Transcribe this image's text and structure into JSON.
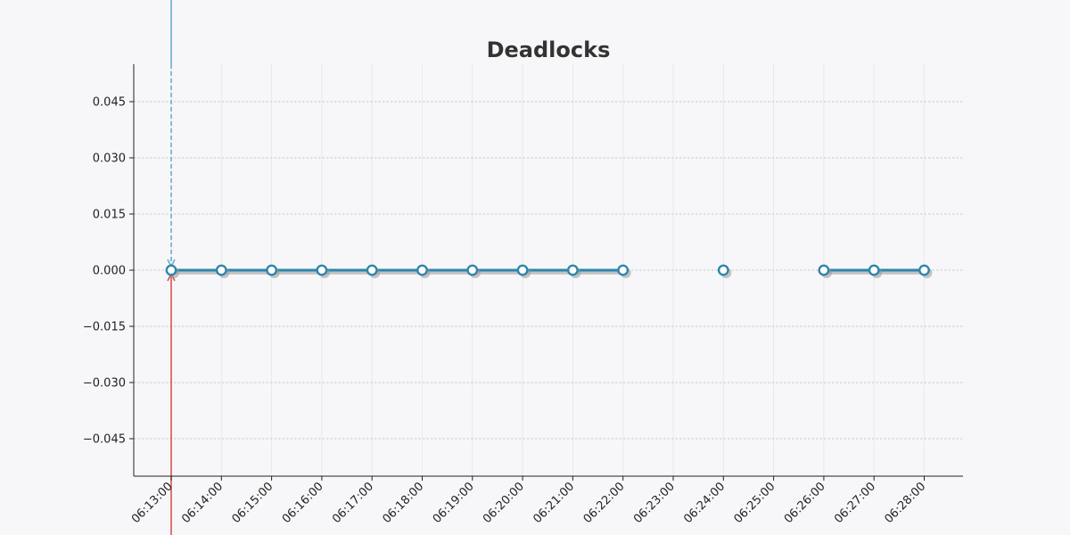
{
  "chart_data": {
    "type": "line",
    "title": "Deadlocks",
    "xlabel": "",
    "ylabel": "",
    "x_tick_labels": [
      "06:13:00",
      "06:14:00",
      "06:15:00",
      "06:16:00",
      "06:17:00",
      "06:18:00",
      "06:19:00",
      "06:20:00",
      "06:21:00",
      "06:22:00",
      "06:23:00",
      "06:24:00",
      "06:25:00",
      "06:26:00",
      "06:27:00",
      "06:28:00"
    ],
    "y_tick_labels": [
      "0.045",
      "0.030",
      "0.015",
      "0.000",
      "−0.015",
      "−0.030",
      "−0.045"
    ],
    "y_ticks": [
      0.045,
      0.03,
      0.015,
      0,
      -0.015,
      -0.03,
      -0.045
    ],
    "ylim": [
      -0.055,
      0.055
    ],
    "grid": true,
    "series": [
      {
        "x": [
          "06:13:00",
          "06:14:00",
          "06:15:00",
          "06:16:00",
          "06:17:00",
          "06:18:00",
          "06:19:00",
          "06:20:00",
          "06:21:00",
          "06:22:00",
          "06:23:00",
          "06:24:00",
          "06:25:00",
          "06:26:00",
          "06:27:00",
          "06:28:00"
        ],
        "values": [
          0,
          0,
          0,
          0,
          0,
          0,
          0,
          0,
          0,
          0,
          null,
          0,
          null,
          0,
          0,
          0
        ]
      }
    ],
    "markers": [
      {
        "type": "vertical-line",
        "x": "06:13:00",
        "color": "#6aaed0",
        "arrow": "down"
      },
      {
        "type": "vertical-line",
        "x": "06:13:00",
        "color": "#d9534f",
        "arrow": "up"
      }
    ],
    "colors": {
      "line": "#2e86ab",
      "marker_edge": "#2e86ab",
      "marker_face": "#ffffff",
      "grid": "#bbbbbb",
      "axis": "#222222",
      "background": "#f7f7f9"
    }
  }
}
